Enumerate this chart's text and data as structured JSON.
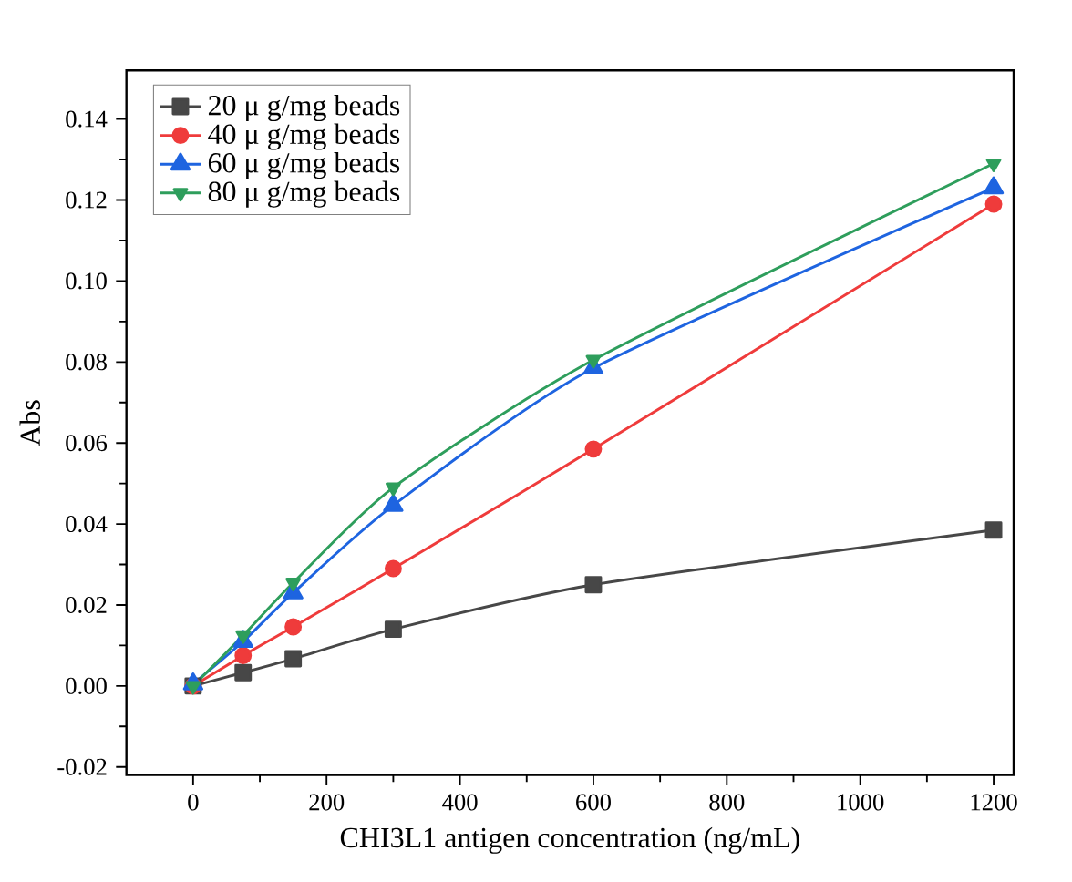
{
  "chart_data": {
    "type": "line",
    "xlabel": "CHI3L1 antigen concentration (ng/mL)",
    "ylabel": "Abs",
    "x": [
      0,
      75,
      150,
      300,
      600,
      1200
    ],
    "series": [
      {
        "name": "20 μ g/mg beads",
        "color": "#474747",
        "marker": "square",
        "values": [
          0,
          0.0033,
          0.0067,
          0.014,
          0.025,
          0.0385
        ]
      },
      {
        "name": "40 μ g/mg beads",
        "color": "#ef3b3b",
        "marker": "circle",
        "values": [
          0,
          0.0075,
          0.0146,
          0.029,
          0.0585,
          0.119
        ]
      },
      {
        "name": "60 μ g/mg beads",
        "color": "#1e64e0",
        "marker": "triangle",
        "values": [
          0.0005,
          0.011,
          0.023,
          0.0446,
          0.0785,
          0.123
        ]
      },
      {
        "name": "80 μ g/mg beads",
        "color": "#2e9e5c",
        "marker": "triangle-down",
        "values": [
          0,
          0.0125,
          0.0255,
          0.049,
          0.0805,
          0.129
        ]
      }
    ],
    "xlim": [
      -100,
      1230
    ],
    "ylim": [
      -0.022,
      0.152
    ],
    "xticks": [
      0,
      200,
      400,
      600,
      800,
      1000,
      1200
    ],
    "yticks": [
      {
        "value": -0.02,
        "label": "-0.02"
      },
      {
        "value": 0,
        "label": "0.00"
      },
      {
        "value": 0.02,
        "label": "0.02"
      },
      {
        "value": 0.04,
        "label": "0.04"
      },
      {
        "value": 0.06,
        "label": "0.06"
      },
      {
        "value": 0.08,
        "label": "0.08"
      },
      {
        "value": 0.1,
        "label": "0.10"
      },
      {
        "value": 0.12,
        "label": "0.12"
      },
      {
        "value": 0.14,
        "label": "0.14"
      }
    ],
    "legend": "top left",
    "grid": false,
    "line_style": "solid"
  }
}
